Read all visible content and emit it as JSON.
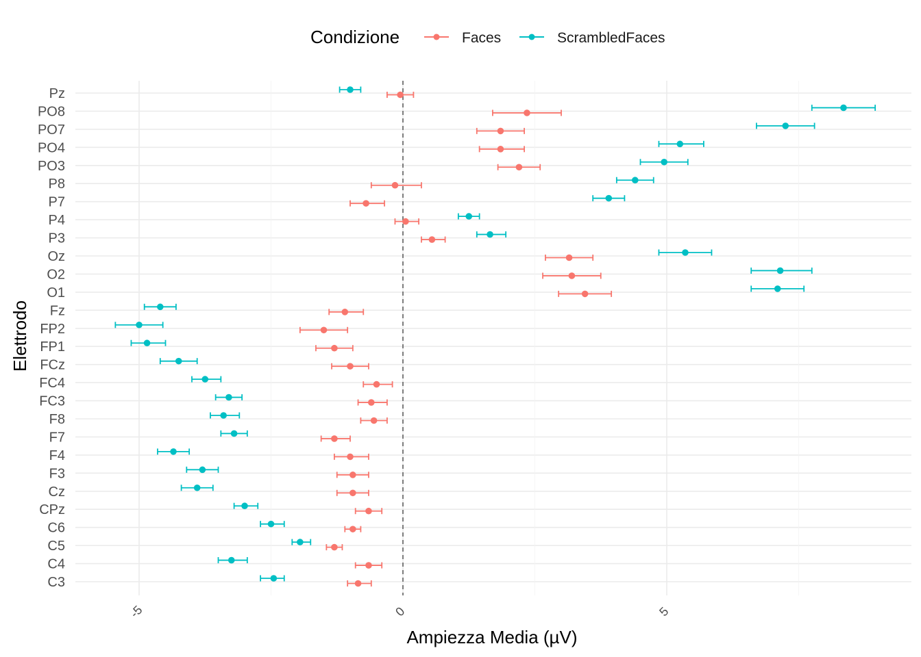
{
  "chart_data": {
    "type": "dot-errorbar",
    "title": "",
    "xlabel": "Ampiezza Media (µV)",
    "ylabel": "Elettrodo",
    "xlim": [
      -5,
      10
    ],
    "x_ticks": [
      -5,
      0,
      5
    ],
    "x_tick_labels": [
      "-5",
      "0",
      "5"
    ],
    "reference_line_x": 0,
    "grid": true,
    "legend": {
      "title": "Condizione",
      "position": "top",
      "entries": [
        {
          "name": "Faces",
          "color": "#F8766D"
        },
        {
          "name": "ScrambledFaces",
          "color": "#00BFC4"
        }
      ]
    },
    "categories": [
      "C3",
      "C4",
      "C5",
      "C6",
      "CPz",
      "Cz",
      "F3",
      "F4",
      "F7",
      "F8",
      "FC3",
      "FC4",
      "FCz",
      "FP1",
      "FP2",
      "Fz",
      "O1",
      "O2",
      "Oz",
      "P3",
      "P4",
      "P7",
      "P8",
      "PO3",
      "PO4",
      "PO7",
      "PO8",
      "Pz"
    ],
    "series": [
      {
        "name": "Faces",
        "color": "#F8766D",
        "values": [
          -0.85,
          -0.65,
          -1.3,
          -0.95,
          -0.65,
          -0.95,
          -0.95,
          -1.0,
          -1.3,
          -0.55,
          -0.6,
          -0.5,
          -1.0,
          -1.3,
          -1.5,
          -1.1,
          3.45,
          3.2,
          3.15,
          0.55,
          0.05,
          -0.7,
          -0.15,
          2.2,
          1.85,
          1.85,
          2.35,
          -0.05
        ],
        "lower": [
          -1.05,
          -0.9,
          -1.45,
          -1.1,
          -0.9,
          -1.25,
          -1.25,
          -1.3,
          -1.55,
          -0.8,
          -0.85,
          -0.75,
          -1.35,
          -1.65,
          -1.95,
          -1.4,
          2.95,
          2.65,
          2.7,
          0.35,
          -0.15,
          -1.0,
          -0.6,
          1.8,
          1.45,
          1.4,
          1.7,
          -0.3
        ],
        "upper": [
          -0.6,
          -0.4,
          -1.15,
          -0.8,
          -0.4,
          -0.65,
          -0.65,
          -0.65,
          -1.0,
          -0.3,
          -0.3,
          -0.2,
          -0.65,
          -0.95,
          -1.05,
          -0.75,
          3.95,
          3.75,
          3.6,
          0.8,
          0.3,
          -0.35,
          0.35,
          2.6,
          2.3,
          2.3,
          3.0,
          0.2
        ]
      },
      {
        "name": "ScrambledFaces",
        "color": "#00BFC4",
        "values": [
          -2.45,
          -3.25,
          -1.95,
          -2.5,
          -3.0,
          -3.9,
          -3.8,
          -4.35,
          -3.2,
          -3.4,
          -3.3,
          -3.75,
          -4.25,
          -4.85,
          -5.0,
          -4.6,
          7.1,
          7.15,
          5.35,
          1.65,
          1.25,
          3.9,
          4.4,
          4.95,
          5.25,
          7.25,
          8.35,
          -1.0
        ],
        "lower": [
          -2.7,
          -3.5,
          -2.1,
          -2.7,
          -3.2,
          -4.2,
          -4.1,
          -4.65,
          -3.45,
          -3.65,
          -3.55,
          -4.0,
          -4.6,
          -5.15,
          -5.45,
          -4.9,
          6.6,
          6.6,
          4.85,
          1.4,
          1.05,
          3.6,
          4.05,
          4.5,
          4.85,
          6.7,
          7.75,
          -1.2
        ],
        "upper": [
          -2.25,
          -2.95,
          -1.75,
          -2.25,
          -2.75,
          -3.6,
          -3.5,
          -4.05,
          -2.95,
          -3.1,
          -3.05,
          -3.45,
          -3.9,
          -4.5,
          -4.55,
          -4.3,
          7.6,
          7.75,
          5.85,
          1.95,
          1.45,
          4.2,
          4.75,
          5.4,
          5.7,
          7.8,
          8.95,
          -0.8
        ]
      }
    ]
  }
}
